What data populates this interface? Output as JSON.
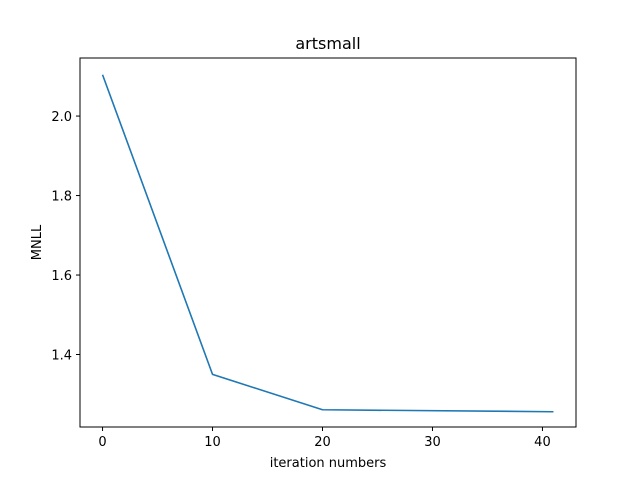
{
  "chart_data": {
    "type": "line",
    "title": "artsmall",
    "xlabel": "iteration numbers",
    "ylabel": "MNLL",
    "xlim": [
      -2.05,
      43.05
    ],
    "ylim": [
      1.2176,
      2.1461
    ],
    "x_ticks": [
      "0",
      "10",
      "20",
      "30",
      "40"
    ],
    "y_ticks": [
      "1.4",
      "1.6",
      "1.8",
      "2.0"
    ],
    "x_tick_values": [
      0,
      10,
      20,
      30,
      40
    ],
    "y_tick_values": [
      1.4,
      1.6,
      1.8,
      2.0
    ],
    "grid": false,
    "series": [
      {
        "color": "#1f77b4",
        "x": [
          0,
          10,
          20,
          41
        ],
        "y": [
          2.104,
          1.35,
          1.261,
          1.256
        ]
      }
    ]
  }
}
